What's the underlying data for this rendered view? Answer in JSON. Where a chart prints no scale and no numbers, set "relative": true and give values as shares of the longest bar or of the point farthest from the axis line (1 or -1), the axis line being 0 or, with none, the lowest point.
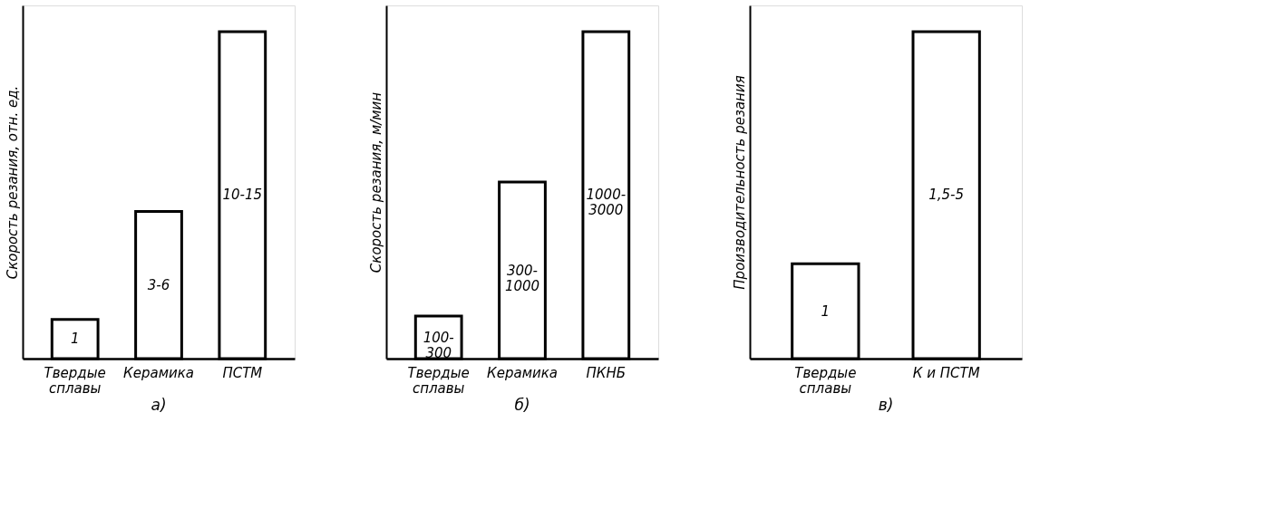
{
  "chart_data": [
    {
      "type": "bar",
      "title": "а)",
      "ylabel": "Скорость резания, отн. ед.",
      "categories": [
        "Твердые\nсплавы",
        "Керамика",
        "ПСТМ"
      ],
      "relative": true,
      "values": [
        0.12,
        0.45,
        1
      ],
      "color": "#ffffff",
      "grid": false,
      "annotations": [
        "1",
        "3-6",
        "10-15"
      ]
    },
    {
      "type": "bar",
      "title": "б)",
      "ylabel": "Скорость резания, м/мин",
      "categories": [
        "Твердые\nсплавы",
        "Керамика",
        "ПКНБ"
      ],
      "relative": true,
      "values": [
        0.13,
        0.54,
        1
      ],
      "color": "#ffffff",
      "grid": false,
      "annotations": [
        "100-300",
        "300-1000",
        "1000-3000"
      ]
    },
    {
      "type": "bar",
      "title": "в)",
      "ylabel": "Производительность резания",
      "categories": [
        "Твердые\nсплавы",
        "К и ПСТМ"
      ],
      "relative": true,
      "values": [
        0.29,
        1
      ],
      "color": "#ffffff",
      "grid": false,
      "annotations": [
        "1",
        "1,5-5"
      ]
    }
  ]
}
